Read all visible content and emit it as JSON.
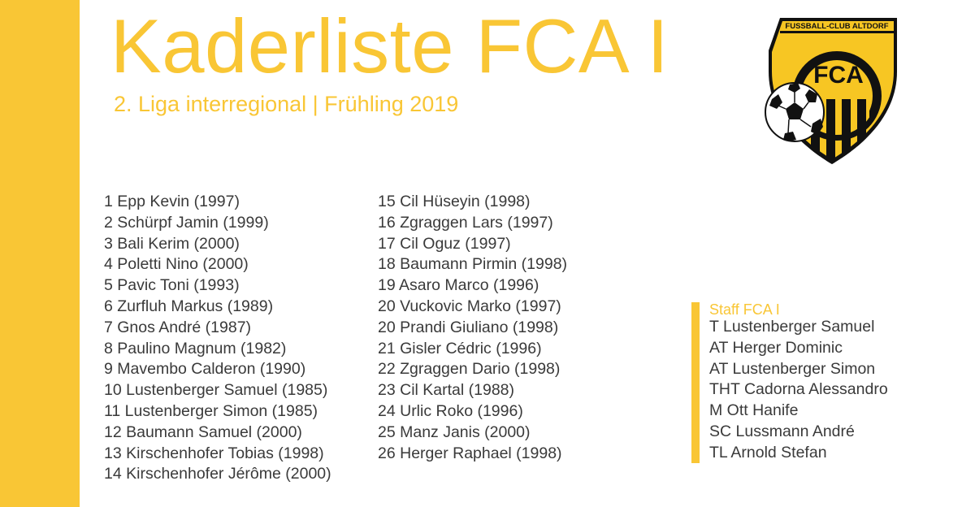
{
  "header": {
    "title": "Kaderliste FCA I",
    "subtitle": "2. Liga interregional | Frühling 2019"
  },
  "logo": {
    "arc_text": "FUSSBALL-CLUB ALTDORF",
    "monogram": "FCA",
    "icon": "soccer-ball-icon"
  },
  "roster": {
    "column_1": [
      "1 Epp Kevin (1997)",
      "2 Schürpf Jamin (1999)",
      "3 Bali Kerim (2000)",
      "4 Poletti Nino (2000)",
      "5 Pavic Toni (1993)",
      "6 Zurfluh Markus (1989)",
      "7 Gnos André (1987)",
      "8 Paulino Magnum (1982)",
      "9 Mavembo Calderon (1990)",
      "10 Lustenberger Samuel (1985)",
      "11 Lustenberger Simon (1985)",
      "12 Baumann Samuel (2000)",
      "13 Kirschenhofer Tobias (1998)",
      "14 Kirschenhofer Jérôme (2000)"
    ],
    "column_2": [
      "15 Cil Hüseyin (1998)",
      "16 Zgraggen Lars (1997)",
      "17 Cil Oguz (1997)",
      "18 Baumann Pirmin (1998)",
      "19 Asaro Marco (1996)",
      "20 Vuckovic Marko (1997)",
      "20 Prandi Giuliano (1998)",
      "21 Gisler Cédric (1996)",
      "22 Zgraggen Dario (1998)",
      "23 Cil Kartal (1988)",
      "24 Urlic Roko (1996)",
      "25 Manz Janis (2000)",
      "26 Herger Raphael (1998)"
    ]
  },
  "staff": {
    "heading": "Staff FCA I",
    "members": [
      "T Lustenberger Samuel",
      "AT Herger Dominic",
      "AT Lustenberger Simon",
      "THT Cadorna Alessandro",
      "M Ott Hanife",
      "SC Lussmann André",
      "TL Arnold Stefan"
    ]
  },
  "colors": {
    "accent": "#f9c635",
    "text": "#3a3a3a",
    "logo_yellow": "#f7c623",
    "logo_black": "#111111"
  }
}
